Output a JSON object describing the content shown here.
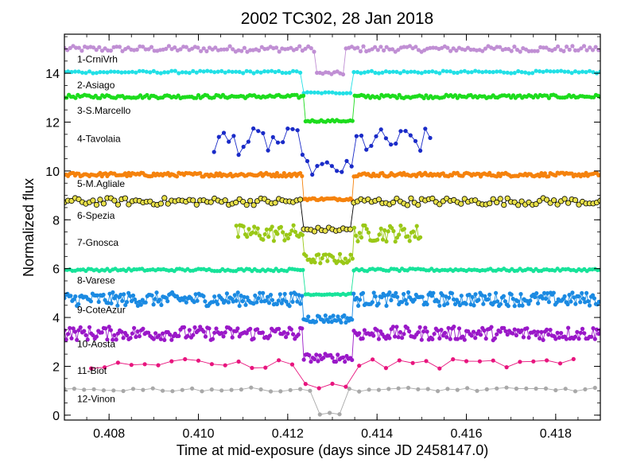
{
  "chart_data": {
    "type": "scatter",
    "title": "2002 TC302, 28 Jan 2018",
    "xlabel": "Time at mid-exposure (days since JD 2458147.0)",
    "ylabel": "Normalized flux",
    "xlim": [
      0.407,
      0.419
    ],
    "ylim": [
      -0.2,
      15.6
    ],
    "xticks": [
      0.408,
      0.41,
      0.412,
      0.414,
      0.416,
      0.418
    ],
    "xtick_labels": [
      "0.408",
      "0.410",
      "0.412",
      "0.414",
      "0.416",
      "0.418"
    ],
    "yticks": [
      0,
      2,
      4,
      6,
      8,
      10,
      12,
      14
    ],
    "ytick_labels": [
      "0",
      "2",
      "4",
      "6",
      "8",
      "10",
      "12",
      "14"
    ],
    "occultation": {
      "start": 0.41235,
      "end": 0.41345
    },
    "series": [
      {
        "name": "1-CrniVrh",
        "color": "#c08fd4",
        "baseline": 15.0,
        "drop": 14.0,
        "noise": 0.12,
        "x_start": 0.407,
        "x_end": 0.419,
        "step": 6.5e-05,
        "occ_start": 0.4126,
        "occ_end": 0.4133,
        "marker": "dot",
        "label_y": 14.6
      },
      {
        "name": "2-Asiago",
        "color": "#22e0e6",
        "baseline": 14.05,
        "drop": 13.2,
        "noise": 0.05,
        "x_start": 0.407,
        "x_end": 0.419,
        "step": 8e-05,
        "occ_start": 0.41235,
        "occ_end": 0.41345,
        "marker": "dot",
        "label_y": 13.55
      },
      {
        "name": "3-S.Marcello",
        "color": "#1ddc1d",
        "baseline": 13.05,
        "drop": 12.05,
        "noise": 0.07,
        "x_start": 0.407,
        "x_end": 0.419,
        "step": 5e-05,
        "occ_start": 0.41235,
        "occ_end": 0.41345,
        "marker": "dot",
        "label_y": 12.5
      },
      {
        "name": "4-Tavolaia",
        "color": "#1a2bc8",
        "baseline": 11.2,
        "drop": 10.1,
        "noise": 0.55,
        "x_start": 0.41035,
        "x_end": 0.41525,
        "step": 0.00011,
        "occ_start": 0.41235,
        "occ_end": 0.41345,
        "marker": "dot",
        "label_y": 11.35
      },
      {
        "name": "5-M.Agliale",
        "color": "#f5820c",
        "baseline": 9.85,
        "drop": 8.85,
        "noise": 0.08,
        "x_start": 0.407,
        "x_end": 0.419,
        "step": 4e-05,
        "occ_start": 0.41235,
        "occ_end": 0.41345,
        "marker": "dot",
        "label_y": 9.5
      },
      {
        "name": "6-Spezia",
        "color": "#e8e04a",
        "baseline": 8.75,
        "drop": 7.6,
        "noise": 0.15,
        "x_start": 0.407,
        "x_end": 0.419,
        "step": 8e-05,
        "occ_start": 0.41235,
        "occ_end": 0.41345,
        "marker": "ring",
        "label_y": 8.2
      },
      {
        "name": "7-Gnosca",
        "color": "#9ac817",
        "baseline": 7.45,
        "drop": 6.4,
        "noise": 0.35,
        "x_start": 0.41085,
        "x_end": 0.415,
        "step": 4e-05,
        "occ_start": 0.41235,
        "occ_end": 0.41345,
        "marker": "dot",
        "label_y": 7.1
      },
      {
        "name": "8-Varese",
        "color": "#17e39a",
        "baseline": 5.95,
        "drop": 4.95,
        "noise": 0.05,
        "x_start": 0.407,
        "x_end": 0.419,
        "step": 6e-05,
        "occ_start": 0.41235,
        "occ_end": 0.41345,
        "marker": "dot",
        "label_y": 5.55
      },
      {
        "name": "9-CoteAzur",
        "color": "#1b8ae2",
        "baseline": 4.75,
        "drop": 3.95,
        "noise": 0.28,
        "x_start": 0.407,
        "x_end": 0.419,
        "step": 3.5e-05,
        "occ_start": 0.41235,
        "occ_end": 0.41345,
        "marker": "dot",
        "label_y": 4.35
      },
      {
        "name": "10-Aosta",
        "color": "#9a18c8",
        "baseline": 3.35,
        "drop": 2.35,
        "noise": 0.28,
        "x_start": 0.407,
        "x_end": 0.419,
        "step": 4e-05,
        "occ_start": 0.41235,
        "occ_end": 0.41345,
        "marker": "dot",
        "label_y": 2.95
      },
      {
        "name": "11-Biot",
        "color": "#e8157e",
        "baseline": 2.1,
        "drop": 1.2,
        "noise": 0.2,
        "x_start": 0.4076,
        "x_end": 0.4186,
        "step": 0.0003,
        "occ_start": 0.41235,
        "occ_end": 0.41345,
        "marker": "dot",
        "label_y": 1.85
      },
      {
        "name": "12-Vinon",
        "color": "#a9a9a9",
        "baseline": 1.05,
        "drop": 0.05,
        "noise": 0.08,
        "x_start": 0.407,
        "x_end": 0.419,
        "step": 0.00022,
        "occ_start": 0.4126,
        "occ_end": 0.4133,
        "marker": "dot",
        "label_y": 0.7
      }
    ]
  }
}
